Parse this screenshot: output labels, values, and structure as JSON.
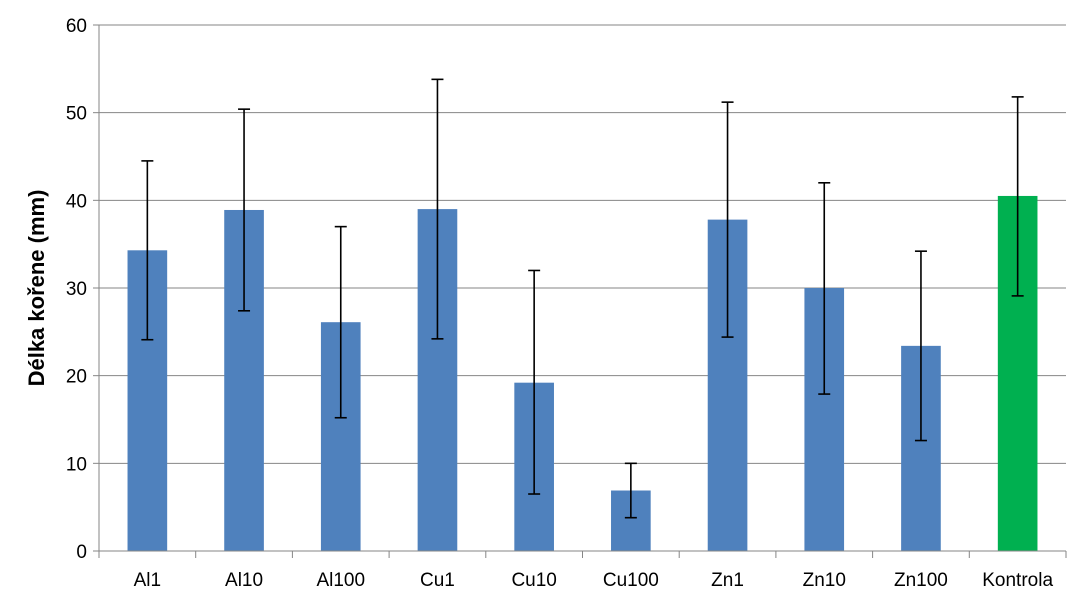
{
  "chart_data": {
    "type": "bar",
    "title": "",
    "xlabel": "",
    "ylabel": "Délka kořene (mm)",
    "ylim": [
      0,
      60
    ],
    "yticks": [
      0,
      10,
      20,
      30,
      40,
      50,
      60
    ],
    "grid": true,
    "legend": "none",
    "categories": [
      "Al1",
      "Al10",
      "Al100",
      "Cu1",
      "Cu10",
      "Cu100",
      "Zn1",
      "Zn10",
      "Zn100",
      "Kontrola"
    ],
    "values": [
      34.3,
      38.9,
      26.1,
      39.0,
      19.2,
      6.9,
      37.8,
      30.0,
      23.4,
      40.5
    ],
    "error_low": [
      24.1,
      27.4,
      15.2,
      24.2,
      6.5,
      3.8,
      24.4,
      17.9,
      12.6,
      29.1
    ],
    "error_high": [
      44.5,
      50.4,
      37.0,
      53.8,
      32.0,
      10.0,
      51.2,
      42.0,
      34.2,
      51.8
    ],
    "colors": [
      "#4f81bd",
      "#4f81bd",
      "#4f81bd",
      "#4f81bd",
      "#4f81bd",
      "#4f81bd",
      "#4f81bd",
      "#4f81bd",
      "#4f81bd",
      "#00b050"
    ],
    "gridline_color": "#868686",
    "axis_color": "#868686",
    "error_bar_color": "#000000"
  }
}
